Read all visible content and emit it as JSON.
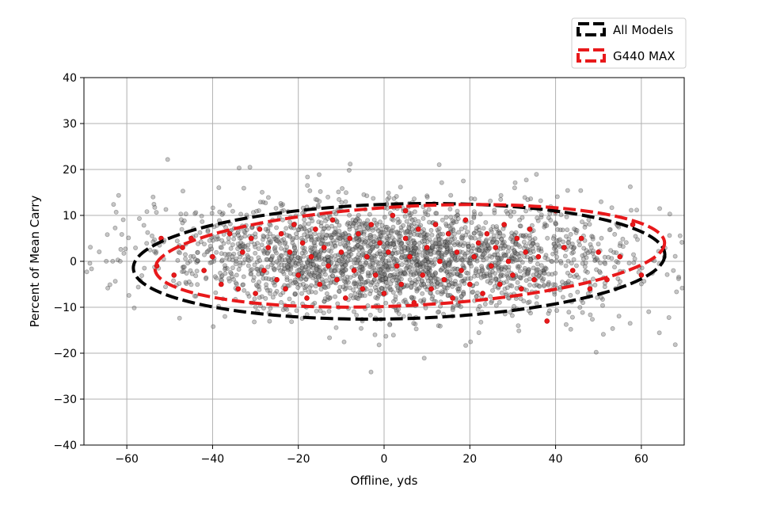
{
  "chart_data": {
    "type": "scatter",
    "title": "",
    "xlabel": "Offline, yds",
    "ylabel": "Percent of Mean Carry",
    "xlim": [
      -70,
      70
    ],
    "ylim": [
      -40,
      40
    ],
    "xticks": [
      -60,
      -40,
      -20,
      0,
      20,
      40,
      60
    ],
    "yticks": [
      -40,
      -30,
      -20,
      -10,
      0,
      10,
      20,
      30,
      40
    ],
    "xtick_labels": [
      "−60",
      "−40",
      "−20",
      "0",
      "20",
      "40",
      "60"
    ],
    "ytick_labels": [
      "−40",
      "−30",
      "−20",
      "−10",
      "0",
      "10",
      "20",
      "30",
      "40"
    ],
    "grid": true,
    "legend_position": "top-right, above plot",
    "series": [
      {
        "name": "All Models",
        "kind": "scatter",
        "color": "#000000",
        "opacity": 0.28,
        "points_note": "approx. 3000 shots, dense cloud",
        "x_range": [
          -70,
          70
        ],
        "y_range": [
          -32,
          23
        ]
      },
      {
        "name": "G440 MAX",
        "kind": "scatter",
        "color": "#e8191b",
        "points": [
          [
            -52,
            5
          ],
          [
            -49,
            -3
          ],
          [
            -47,
            3
          ],
          [
            -45,
            5
          ],
          [
            -42,
            -2
          ],
          [
            -40,
            1
          ],
          [
            -38,
            -5
          ],
          [
            -36,
            6
          ],
          [
            -34,
            -6
          ],
          [
            -33,
            2
          ],
          [
            -31,
            5
          ],
          [
            -30,
            -7
          ],
          [
            -29,
            7
          ],
          [
            -28,
            -2
          ],
          [
            -27,
            3
          ],
          [
            -25,
            -4
          ],
          [
            -24,
            6
          ],
          [
            -23,
            -6
          ],
          [
            -22,
            2
          ],
          [
            -21,
            8
          ],
          [
            -20,
            -3
          ],
          [
            -19,
            4
          ],
          [
            -18,
            -8
          ],
          [
            -17,
            1
          ],
          [
            -16,
            7
          ],
          [
            -15,
            -5
          ],
          [
            -14,
            3
          ],
          [
            -13,
            -1
          ],
          [
            -12,
            9
          ],
          [
            -11,
            -4
          ],
          [
            -10,
            2
          ],
          [
            -9,
            -8
          ],
          [
            -8,
            5
          ],
          [
            -7,
            -2
          ],
          [
            -6,
            6
          ],
          [
            -5,
            -6
          ],
          [
            -4,
            1
          ],
          [
            -3,
            8
          ],
          [
            -2,
            -3
          ],
          [
            -1,
            4
          ],
          [
            0,
            -7
          ],
          [
            1,
            2
          ],
          [
            2,
            10
          ],
          [
            3,
            -1
          ],
          [
            4,
            -5
          ],
          [
            5,
            5
          ],
          [
            6,
            1
          ],
          [
            7,
            -9
          ],
          [
            8,
            7
          ],
          [
            9,
            -3
          ],
          [
            10,
            3
          ],
          [
            11,
            -6
          ],
          [
            12,
            8
          ],
          [
            13,
            0
          ],
          [
            14,
            -4
          ],
          [
            15,
            6
          ],
          [
            16,
            -8
          ],
          [
            17,
            2
          ],
          [
            18,
            -2
          ],
          [
            19,
            9
          ],
          [
            20,
            -5
          ],
          [
            21,
            1
          ],
          [
            22,
            4
          ],
          [
            23,
            -7
          ],
          [
            24,
            6
          ],
          [
            25,
            -1
          ],
          [
            26,
            3
          ],
          [
            27,
            -5
          ],
          [
            28,
            8
          ],
          [
            29,
            0
          ],
          [
            30,
            -3
          ],
          [
            31,
            5
          ],
          [
            32,
            -6
          ],
          [
            33,
            2
          ],
          [
            34,
            7
          ],
          [
            35,
            -4
          ],
          [
            36,
            1
          ],
          [
            38,
            -13
          ],
          [
            40,
            11
          ],
          [
            42,
            3
          ],
          [
            44,
            -2
          ],
          [
            46,
            5
          ],
          [
            48,
            -6
          ],
          [
            50,
            2
          ],
          [
            52,
            -4
          ],
          [
            55,
            1
          ],
          [
            58,
            8
          ],
          [
            60,
            -3
          ],
          [
            -53,
            -1
          ],
          [
            5,
            11
          ]
        ]
      },
      {
        "name": "All Models",
        "kind": "ellipse",
        "color": "#000000",
        "center": [
          3.5,
          0
        ],
        "semi_axes": [
          62,
          12.5
        ],
        "rotation_deg": -1.5
      },
      {
        "name": "G440 MAX",
        "kind": "ellipse",
        "color": "#e8191b",
        "center": [
          6,
          1.2
        ],
        "semi_axes": [
          59.5,
          10.8
        ],
        "rotation_deg": -3
      }
    ]
  }
}
